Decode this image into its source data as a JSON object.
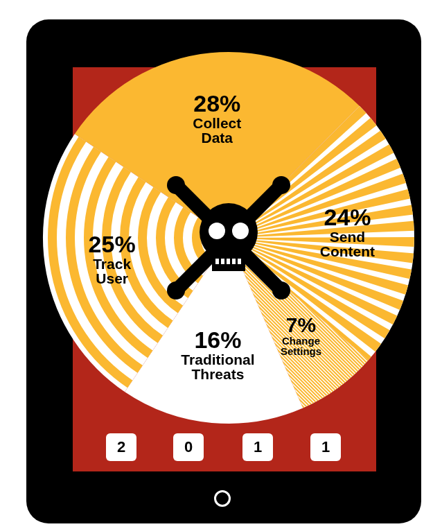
{
  "chart_data": {
    "type": "pie",
    "title": "2011",
    "categories": [
      "Collect Data",
      "Send Content",
      "Change Settings",
      "Traditional Threats",
      "Track User"
    ],
    "values": [
      28,
      24,
      7,
      16,
      25
    ],
    "value_labels": [
      "28%",
      "24%",
      "7%",
      "16%",
      "25%"
    ],
    "colors": [
      "#fbb831",
      "#fbb831",
      "#fbb831",
      "#ffffff",
      "#fbb831"
    ],
    "data_labels": true
  }
}
